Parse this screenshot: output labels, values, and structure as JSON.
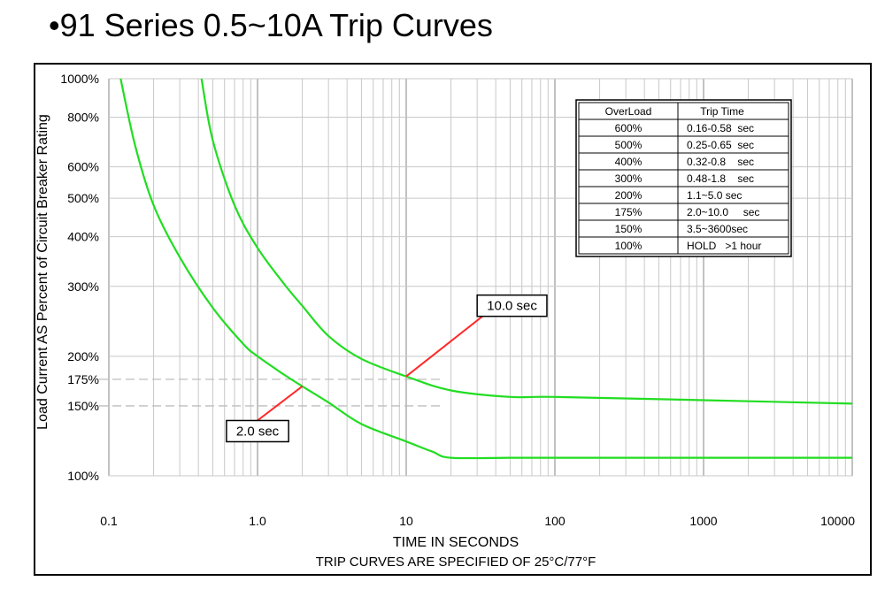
{
  "title": "•91 Series 0.5~10A Trip Curves",
  "chart_data": {
    "type": "line",
    "xlabel": "TIME IN SECONDS",
    "subtitle": "TRIP CURVES ARE SPECIFIED OF 25°C/77°F",
    "ylabel": "Load Current AS Percent of Circuit Breaker Rating",
    "x_scale": "log",
    "y_scale": "log",
    "xlim": [
      0.1,
      10000
    ],
    "ylim": [
      100,
      1000
    ],
    "x_ticks": [
      {
        "value": 0.1,
        "label": "0.1"
      },
      {
        "value": 1,
        "label": "1.0"
      },
      {
        "value": 10,
        "label": "10"
      },
      {
        "value": 100,
        "label": "100"
      },
      {
        "value": 1000,
        "label": "1000"
      },
      {
        "value": 10000,
        "label": "10000"
      }
    ],
    "y_ticks": [
      {
        "value": 1000,
        "label": "1000%"
      },
      {
        "value": 800,
        "label": "800%"
      },
      {
        "value": 600,
        "label": "600%"
      },
      {
        "value": 500,
        "label": "500%"
      },
      {
        "value": 400,
        "label": "400%"
      },
      {
        "value": 300,
        "label": "300%"
      },
      {
        "value": 200,
        "label": "200%"
      },
      {
        "value": 175,
        "label": "175%"
      },
      {
        "value": 150,
        "label": "150%"
      },
      {
        "value": 100,
        "label": "100%"
      }
    ],
    "dashed_reference_lines_y": [
      175,
      150
    ],
    "grid": true,
    "series": [
      {
        "color": "#22dd22",
        "points": [
          [
            0.12,
            1000
          ],
          [
            0.15,
            680
          ],
          [
            0.2,
            480
          ],
          [
            0.3,
            355
          ],
          [
            0.5,
            265
          ],
          [
            0.8,
            215
          ],
          [
            1.0,
            200
          ],
          [
            1.5,
            180
          ],
          [
            2.0,
            168
          ],
          [
            3.0,
            153
          ],
          [
            5.0,
            135
          ],
          [
            10,
            122
          ],
          [
            15,
            115
          ],
          [
            20,
            111
          ],
          [
            50,
            111
          ],
          [
            100,
            111
          ],
          [
            1000,
            111
          ],
          [
            10000,
            111
          ]
        ]
      },
      {
        "color": "#22dd22",
        "points": [
          [
            0.42,
            1000
          ],
          [
            0.5,
            700
          ],
          [
            0.7,
            480
          ],
          [
            1.0,
            375
          ],
          [
            1.5,
            305
          ],
          [
            2.0,
            268
          ],
          [
            3.0,
            225
          ],
          [
            5.0,
            197
          ],
          [
            10,
            178
          ],
          [
            20,
            164
          ],
          [
            50,
            158
          ],
          [
            100,
            158
          ],
          [
            1000,
            155
          ],
          [
            10000,
            152
          ]
        ]
      }
    ],
    "callouts": [
      {
        "label": "10.0 sec",
        "x": 10,
        "y": 178,
        "label_x": 30,
        "label_y": 260
      },
      {
        "label": "2.0 sec",
        "x": 2.0,
        "y": 168,
        "label_x": 1.0,
        "label_y": 135
      }
    ],
    "legend_table": {
      "position": "top-right",
      "headers": [
        "OverLoad",
        "Trip Time"
      ],
      "rows": [
        [
          "600%",
          "0.16-0.58  sec"
        ],
        [
          "500%",
          "0.25-0.65  sec"
        ],
        [
          "400%",
          "0.32-0.8    sec"
        ],
        [
          "300%",
          "0.48-1.8    sec"
        ],
        [
          "200%",
          "1.1~5.0 sec"
        ],
        [
          "175%",
          "2.0~10.0     sec"
        ],
        [
          "150%",
          "3.5~3600sec"
        ],
        [
          "100%",
          "HOLD   >1 hour"
        ]
      ]
    }
  }
}
